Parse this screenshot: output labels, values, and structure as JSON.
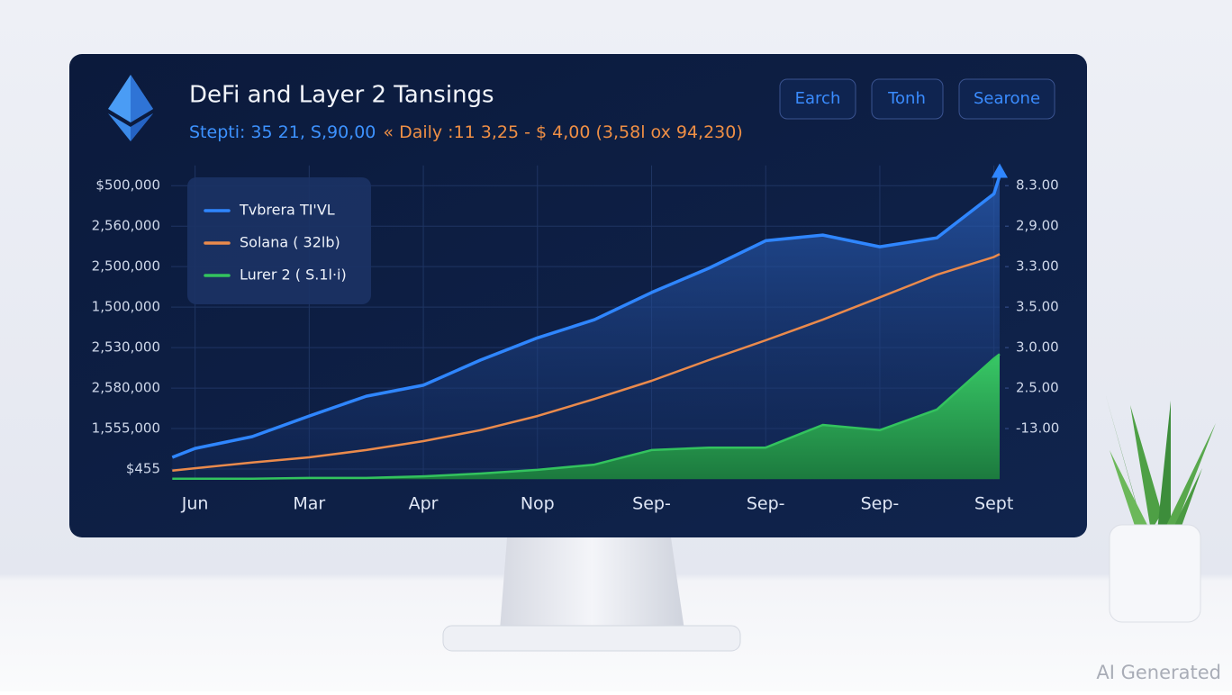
{
  "header": {
    "title": "DeFi and Layer 2 Tansings",
    "subtitle": [
      "Stepti: 35 21, S,90,00",
      "« Daily :11 3,25 - $ 4,00 (3,58l ox 94,230)"
    ]
  },
  "buttons": [
    "Earch",
    "Tonh",
    "Searone"
  ],
  "watermark": "AI Generated",
  "chart_data": {
    "type": "area",
    "x": [
      -0.2,
      0,
      0.5,
      1,
      1.5,
      2,
      2.5,
      3,
      3.5,
      4,
      4.5,
      5,
      5.5,
      6,
      6.5,
      7,
      7.05
    ],
    "xlim": [
      -0.21,
      7.05
    ],
    "xticks": [
      {
        "value": 0,
        "label": "Jun"
      },
      {
        "value": 1,
        "label": "Mar"
      },
      {
        "value": 2,
        "label": "Apr"
      },
      {
        "value": 3,
        "label": "Nop"
      },
      {
        "value": 4,
        "label": "Sep-"
      },
      {
        "value": 5,
        "label": "Sep-"
      },
      {
        "value": 6,
        "label": "Sep-"
      },
      {
        "value": 7,
        "label": "Sept"
      }
    ],
    "ylim": [
      -0.25,
      7.5
    ],
    "yticks": [
      {
        "value": 7,
        "label": "$500,000"
      },
      {
        "value": 6,
        "label": "2,560,000"
      },
      {
        "value": 5,
        "label": "2,500,000"
      },
      {
        "value": 4,
        "label": "1,500,000"
      },
      {
        "value": 3,
        "label": "2,530,000"
      },
      {
        "value": 2,
        "label": "2,580,000"
      },
      {
        "value": 1,
        "label": "1,555,000"
      },
      {
        "value": 0,
        "label": "$455"
      }
    ],
    "y2lim": [
      -0.25,
      7.5
    ],
    "y2ticks": [
      {
        "value": 7,
        "label": "8.3.00"
      },
      {
        "value": 6,
        "label": "2,9.00"
      },
      {
        "value": 5,
        "label": "3.3.00"
      },
      {
        "value": 4,
        "label": "3.5.00"
      },
      {
        "value": 3,
        "label": "3.0.00"
      },
      {
        "value": 2,
        "label": "2.5.00"
      },
      {
        "value": 1,
        "label": "-13.00"
      }
    ],
    "grid": true,
    "series": [
      {
        "name": "Tvbrera TI'VL",
        "color": "#2f86ff",
        "fill": true,
        "values": [
          0.29,
          0.51,
          0.8,
          1.31,
          1.8,
          2.07,
          2.69,
          3.24,
          3.69,
          4.36,
          4.96,
          5.64,
          5.78,
          5.49,
          5.71,
          6.8,
          7.24
        ]
      },
      {
        "name": "Solana ( 32lb)",
        "color": "#ea8a4c",
        "fill": false,
        "values": [
          -0.04,
          0.02,
          0.16,
          0.29,
          0.47,
          0.69,
          0.96,
          1.31,
          1.73,
          2.18,
          2.69,
          3.18,
          3.69,
          4.24,
          4.8,
          5.24,
          5.31
        ]
      },
      {
        "name": "Lurer 2 ( S.1l·i)",
        "color": "#33c35e",
        "fill": true,
        "values": [
          -0.24,
          -0.24,
          -0.24,
          -0.22,
          -0.22,
          -0.18,
          -0.11,
          -0.02,
          0.11,
          0.47,
          0.53,
          0.53,
          1.09,
          0.96,
          1.47,
          2.73,
          2.84
        ]
      }
    ]
  }
}
